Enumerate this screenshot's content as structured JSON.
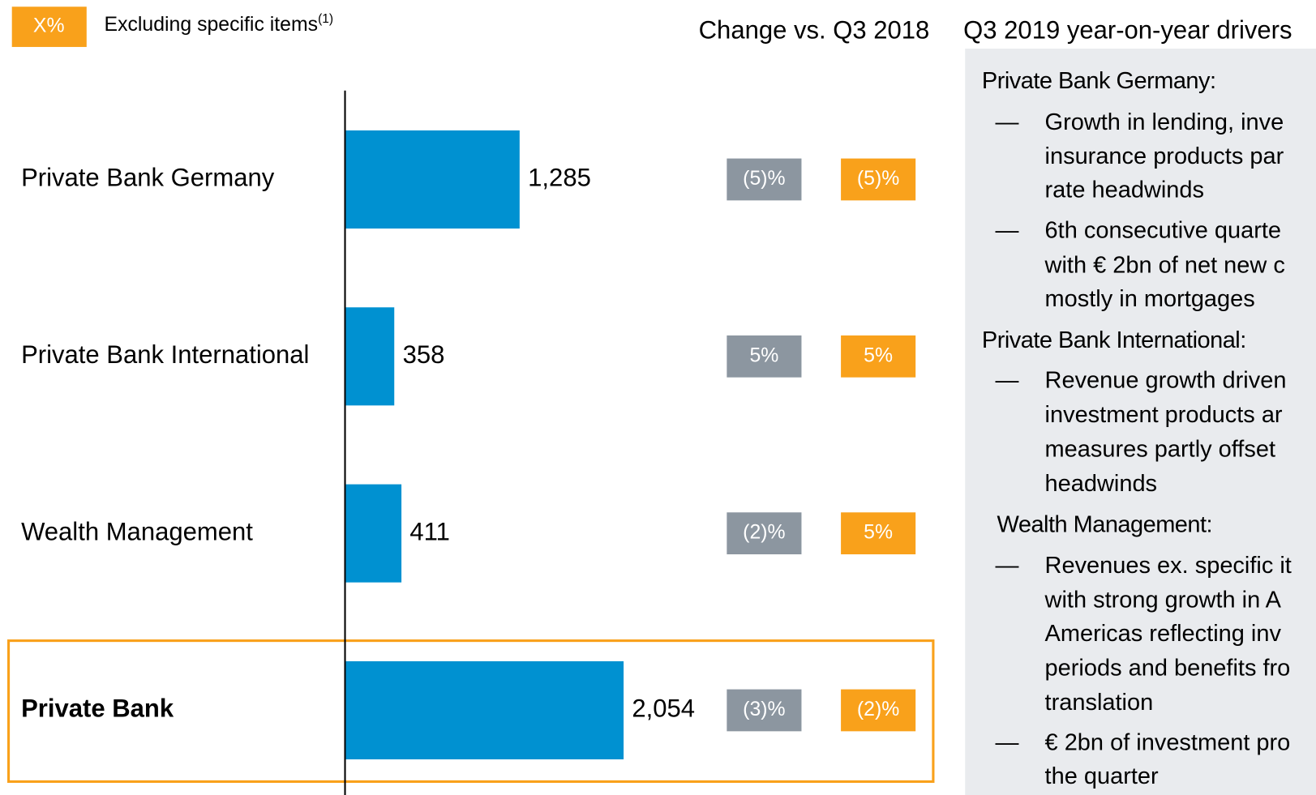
{
  "chart_data": {
    "type": "bar",
    "legend_box": "X%",
    "legend_text": "Excluding specific items",
    "legend_note": "(1)",
    "change_title": "Change vs. Q3 2018",
    "categories": [
      "Private Bank Germany",
      "Private Bank International",
      "Wealth Management",
      "Private Bank"
    ],
    "values": [
      1285,
      358,
      411,
      2054
    ],
    "value_labels": [
      "1,285",
      "358",
      "411",
      "2,054"
    ],
    "color": "#0091d1",
    "series": [
      {
        "name": "Change",
        "color": "#8c96a0",
        "values": [
          -5,
          5,
          -2,
          -3
        ],
        "value_labels": [
          "(5)%",
          "5%",
          "(2)%",
          "(3)%"
        ]
      },
      {
        "name": "Excluding specific items",
        "color": "#f9a11b",
        "values": [
          -5,
          5,
          5,
          -2
        ],
        "value_labels": [
          "(5)%",
          "5%",
          "5%",
          "(2)%"
        ]
      }
    ]
  },
  "drivers": {
    "title": "Q3 2019 year-on-year drivers",
    "marker": "—",
    "sections": [
      {
        "heading": "Private Bank Germany:",
        "bullets": [
          [
            "Growth in lending, inve",
            "insurance products par",
            "rate headwinds"
          ],
          [
            "6th consecutive quarte",
            "with € 2bn of net new c",
            "mostly in mortgages"
          ]
        ]
      },
      {
        "heading": "Private Bank International:",
        "bullets": [
          [
            "Revenue growth driven",
            "investment products ar",
            "measures partly offset",
            "headwinds"
          ]
        ]
      },
      {
        "heading": "Wealth Management:",
        "bullets": [
          [
            "Revenues ex. specific it",
            "with strong growth in A",
            "Americas reflecting inv",
            "periods and benefits fro",
            "translation"
          ],
          [
            "€ 2bn of investment pro",
            "the quarter"
          ]
        ]
      }
    ]
  }
}
